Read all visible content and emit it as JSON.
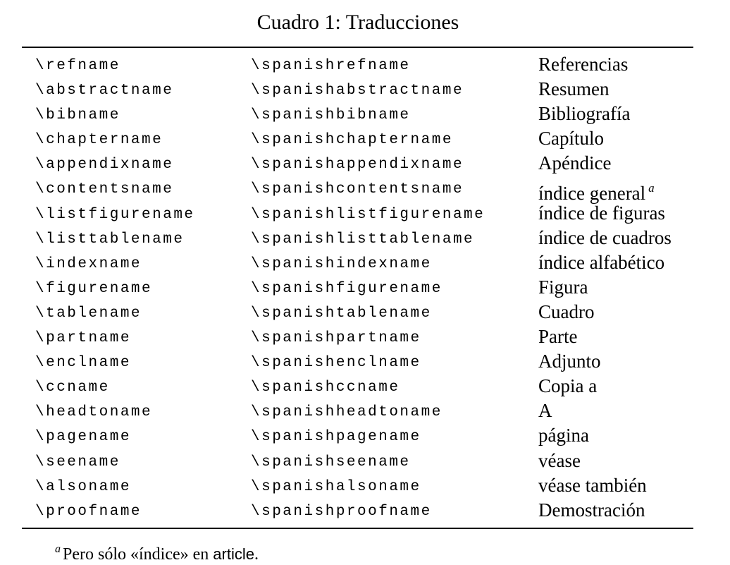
{
  "caption": "Cuadro 1: Traducciones",
  "rows": [
    {
      "command": "\\refname",
      "spanish_command": "\\spanishrefname",
      "translation": "Referencias"
    },
    {
      "command": "\\abstractname",
      "spanish_command": "\\spanishabstractname",
      "translation": "Resumen"
    },
    {
      "command": "\\bibname",
      "spanish_command": "\\spanishbibname",
      "translation": "Bibliografía"
    },
    {
      "command": "\\chaptername",
      "spanish_command": "\\spanishchaptername",
      "translation": "Capítulo"
    },
    {
      "command": "\\appendixname",
      "spanish_command": "\\spanishappendixname",
      "translation": "Apéndice"
    },
    {
      "command": "\\contentsname",
      "spanish_command": "\\spanishcontentsname",
      "translation": "índice general",
      "footnote_mark": "a"
    },
    {
      "command": "\\listfigurename",
      "spanish_command": "\\spanishlistfigurename",
      "translation": "índice de figuras"
    },
    {
      "command": "\\listtablename",
      "spanish_command": "\\spanishlisttablename",
      "translation": "índice de cuadros"
    },
    {
      "command": "\\indexname",
      "spanish_command": "\\spanishindexname",
      "translation": "índice alfabético"
    },
    {
      "command": "\\figurename",
      "spanish_command": "\\spanishfigurename",
      "translation": "Figura"
    },
    {
      "command": "\\tablename",
      "spanish_command": "\\spanishtablename",
      "translation": "Cuadro"
    },
    {
      "command": "\\partname",
      "spanish_command": "\\spanishpartname",
      "translation": "Parte"
    },
    {
      "command": "\\enclname",
      "spanish_command": "\\spanishenclname",
      "translation": "Adjunto"
    },
    {
      "command": "\\ccname",
      "spanish_command": "\\spanishccname",
      "translation": "Copia a"
    },
    {
      "command": "\\headtoname",
      "spanish_command": "\\spanishheadtoname",
      "translation": "A"
    },
    {
      "command": "\\pagename",
      "spanish_command": "\\spanishpagename",
      "translation": "página"
    },
    {
      "command": "\\seename",
      "spanish_command": "\\spanishseename",
      "translation": "véase"
    },
    {
      "command": "\\alsoname",
      "spanish_command": "\\spanishalsoname",
      "translation": "véase también"
    },
    {
      "command": "\\proofname",
      "spanish_command": "\\spanishproofname",
      "translation": "Demostración"
    }
  ],
  "footnote": {
    "mark": "a",
    "text_before": "Pero sólo «índice» en ",
    "class_name": "article",
    "text_after": "."
  }
}
